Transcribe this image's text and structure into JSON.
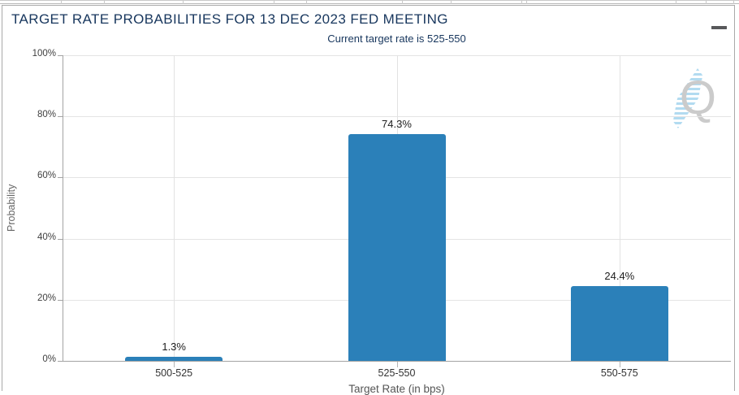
{
  "header": {
    "title": "TARGET RATE PROBABILITIES FOR 13 DEC 2023 FED MEETING",
    "subtitle": "Current target rate is 525-550"
  },
  "watermark": {
    "letter": "Q"
  },
  "chart_data": {
    "type": "bar",
    "title": "TARGET RATE PROBABILITIES FOR 13 DEC 2023 FED MEETING",
    "subtitle": "Current target rate is 525-550",
    "categories": [
      "500-525",
      "525-550",
      "550-575"
    ],
    "values": [
      1.3,
      74.3,
      24.4
    ],
    "value_labels": [
      "1.3%",
      "74.3%",
      "24.4%"
    ],
    "xlabel": "Target Rate (in bps)",
    "ylabel": "Probability",
    "ylim": [
      0,
      100
    ],
    "yticks": [
      0,
      20,
      40,
      60,
      80,
      100
    ],
    "ytick_labels": [
      "0%",
      "20%",
      "40%",
      "60%",
      "80%",
      "100%"
    ],
    "grid": true,
    "legend_position": "none",
    "bar_color": "#2b80b9"
  },
  "colors": {
    "bar": "#2b80b9",
    "title_text": "#17365d",
    "watermark_gray": "#cbcbcb",
    "watermark_blue": "#a9d7ef"
  }
}
